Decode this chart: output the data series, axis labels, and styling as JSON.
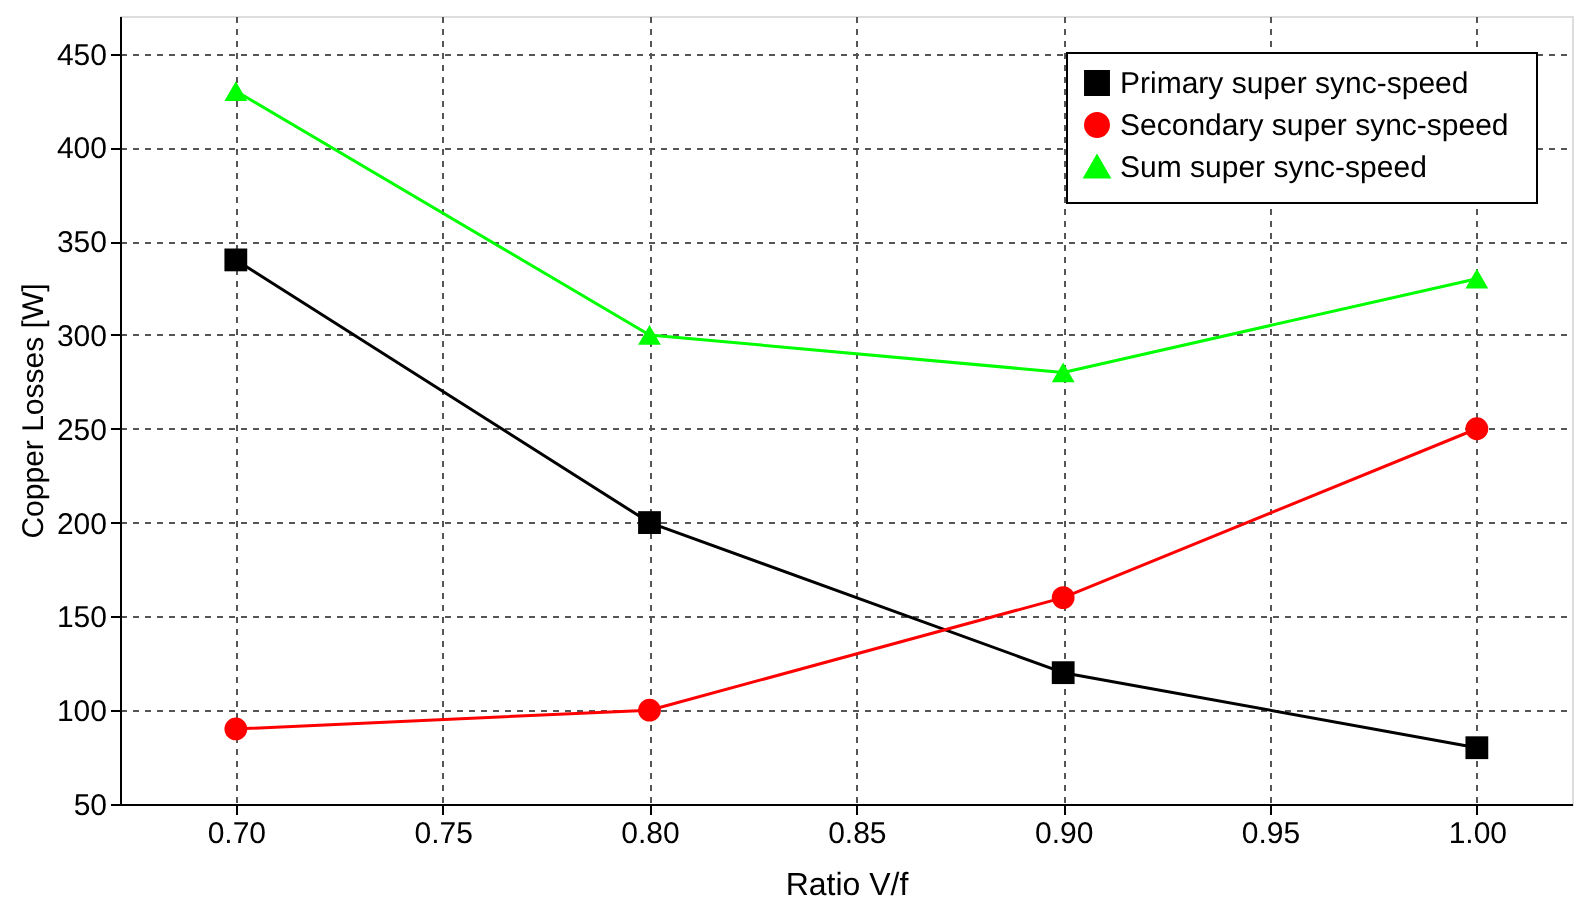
{
  "chart_data": {
    "type": "line",
    "xlabel": "Ratio V/f",
    "ylabel": "Copper Losses [W]",
    "x": [
      0.7,
      0.8,
      0.9,
      1.0
    ],
    "series": [
      {
        "name": "Primary      super sync-speed",
        "color": "#000000",
        "marker": "square",
        "values": [
          340,
          200,
          120,
          80
        ]
      },
      {
        "name": "Secondary  super sync-speed",
        "color": "#ff0000",
        "marker": "circle",
        "values": [
          90,
          100,
          160,
          250
        ]
      },
      {
        "name": "Sum            super sync-speed",
        "color": "#00ff00",
        "marker": "triangle",
        "values": [
          430,
          300,
          280,
          330
        ]
      }
    ],
    "xlim": [
      0.672,
      1.023
    ],
    "xticks": [
      {
        "value": 0.7,
        "label": "0.70"
      },
      {
        "value": 0.75,
        "label": "0.75"
      },
      {
        "value": 0.8,
        "label": "0.80"
      },
      {
        "value": 0.85,
        "label": "0.85"
      },
      {
        "value": 0.9,
        "label": "0.90"
      },
      {
        "value": 0.95,
        "label": "0.95"
      },
      {
        "value": 1.0,
        "label": "1.00"
      }
    ],
    "ylim": [
      50,
      470
    ],
    "yticks": [
      50,
      100,
      150,
      200,
      250,
      300,
      350,
      400,
      450
    ],
    "grid": true,
    "legend": "top right",
    "line_style": "solid"
  }
}
